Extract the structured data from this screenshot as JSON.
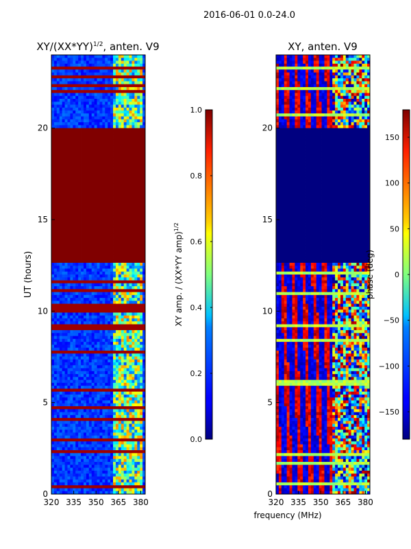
{
  "figure_title": "2016-06-01 0.0-24.0",
  "shared_xlabel": "frequency (MHz)",
  "chart_data": [
    {
      "type": "heatmap",
      "title_main": "XY/(XX*YY)",
      "title_sup": "1/2",
      "title_tail": ", anten. V9",
      "ylabel": "UT (hours)",
      "xlim": [
        320,
        383
      ],
      "ylim": [
        0,
        24
      ],
      "xticks": [
        320,
        335,
        350,
        365,
        380
      ],
      "yticks": [
        0,
        5,
        10,
        15,
        20
      ],
      "colormap": "jet",
      "colorbar": {
        "label_main": "XY amp. / (XX*YY amp)",
        "label_sup": "1/2",
        "range": [
          0.0,
          1.0
        ],
        "ticks": [
          "0.0",
          "0.2",
          "0.4",
          "0.6",
          "0.8",
          "1.0"
        ]
      },
      "bands_UT": [
        {
          "from": 0.0,
          "to": 12.7,
          "value": "mixed, mostly low with high stripes"
        },
        {
          "from": 12.7,
          "to": 20.0,
          "value": 1.0
        },
        {
          "from": 20.0,
          "to": 24.0,
          "value": "mixed, mostly low"
        }
      ]
    },
    {
      "type": "heatmap",
      "title_main": "XY, anten. V9",
      "title_sup": "",
      "title_tail": "",
      "ylabel": "",
      "xlim": [
        320,
        383
      ],
      "ylim": [
        0,
        24
      ],
      "xticks": [
        320,
        335,
        350,
        365,
        380
      ],
      "yticks": [
        0,
        5,
        10,
        15,
        20
      ],
      "colormap": "jet",
      "colorbar": {
        "label_main": "phase (deg)",
        "label_sup": "",
        "range": [
          -180,
          180
        ],
        "ticks": [
          "−150",
          "−100",
          "−50",
          "0",
          "50",
          "100",
          "150"
        ]
      },
      "bands_UT": [
        {
          "from": 0.0,
          "to": 12.7,
          "value": "mixed phases"
        },
        {
          "from": 12.7,
          "to": 20.0,
          "value": -180
        },
        {
          "from": 20.0,
          "to": 24.0,
          "value": "mixed phases"
        }
      ]
    }
  ]
}
